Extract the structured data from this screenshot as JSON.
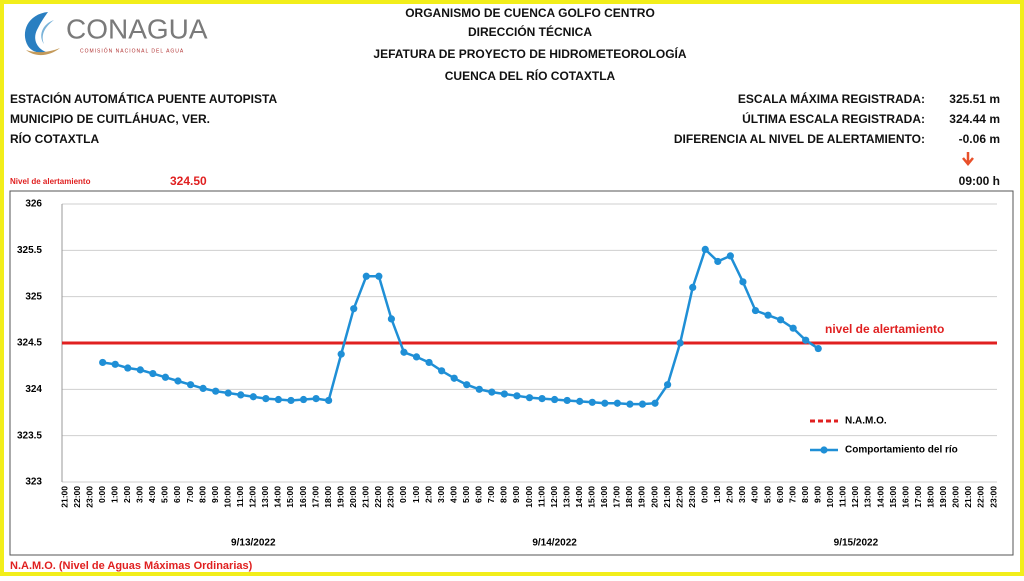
{
  "header": {
    "logo_name": "CONAGUA",
    "logo_subtitle": "COMISIÓN NACIONAL DEL AGUA",
    "titles": [
      "ORGANISMO DE CUENCA GOLFO CENTRO",
      "DIRECCIÓN TÉCNICA",
      "JEFATURA DE PROYECTO DE HIDROMETEOROLOGÍA",
      "CUENCA DEL RÍO COTAXTLA"
    ],
    "station": [
      "ESTACIÓN AUTOMÁTICA PUENTE AUTOPISTA",
      "MUNICIPIO DE CUITLÁHUAC, VER.",
      "RÍO COTAXTLA"
    ],
    "stats": [
      {
        "label": "ESCALA MÁXIMA REGISTRADA:",
        "value": "325.51 m"
      },
      {
        "label": "ÚLTIMA ESCALA REGISTRADA:",
        "value": "324.44 m"
      },
      {
        "label": "DIFERENCIA AL NIVEL DE ALERTAMIENTO:",
        "value": "-0.06 m"
      }
    ],
    "alert_label": "Nivel de alertamiento",
    "alert_value": "324.50",
    "time": "09:00 h"
  },
  "chart_data": {
    "type": "line",
    "categories": [
      "21:00",
      "22:00",
      "23:00",
      "0:00",
      "1:00",
      "2:00",
      "3:00",
      "4:00",
      "5:00",
      "6:00",
      "7:00",
      "8:00",
      "9:00",
      "10:00",
      "11:00",
      "12:00",
      "13:00",
      "14:00",
      "15:00",
      "16:00",
      "17:00",
      "18:00",
      "19:00",
      "20:00",
      "21:00",
      "22:00",
      "23:00",
      "0:00",
      "1:00",
      "2:00",
      "3:00",
      "4:00",
      "5:00",
      "6:00",
      "7:00",
      "8:00",
      "9:00",
      "10:00",
      "11:00",
      "12:00",
      "13:00",
      "14:00",
      "15:00",
      "16:00",
      "17:00",
      "18:00",
      "19:00",
      "20:00",
      "21:00",
      "22:00",
      "23:00",
      "0:00",
      "1:00",
      "2:00",
      "3:00",
      "4:00",
      "5:00",
      "6:00",
      "7:00",
      "8:00",
      "9:00",
      "10:00",
      "11:00",
      "12:00",
      "13:00",
      "14:00",
      "15:00",
      "16:00",
      "17:00",
      "18:00",
      "19:00",
      "20:00",
      "21:00",
      "22:00",
      "23:00"
    ],
    "date_labels": [
      "9/13/2022",
      "9/14/2022",
      "9/15/2022"
    ],
    "series": [
      {
        "name": "Comportamiento del río",
        "color": "#1f8fd6",
        "values": [
          null,
          null,
          null,
          324.29,
          324.27,
          324.23,
          324.21,
          324.17,
          324.13,
          324.09,
          324.05,
          324.01,
          323.98,
          323.96,
          323.94,
          323.92,
          323.9,
          323.89,
          323.88,
          323.89,
          323.9,
          323.88,
          324.38,
          324.87,
          325.22,
          325.22,
          324.76,
          324.4,
          324.35,
          324.29,
          324.2,
          324.12,
          324.05,
          324.0,
          323.97,
          323.95,
          323.93,
          323.91,
          323.9,
          323.89,
          323.88,
          323.87,
          323.86,
          323.85,
          323.85,
          323.84,
          323.84,
          323.85,
          324.05,
          324.5,
          325.1,
          325.51,
          325.38,
          325.44,
          325.16,
          324.85,
          324.8,
          324.75,
          324.66,
          324.53,
          324.44,
          null,
          null,
          null,
          null,
          null,
          null,
          null,
          null,
          null,
          null,
          null,
          null,
          null,
          null
        ]
      }
    ],
    "reference_lines": [
      {
        "name": "N.A.M.O.",
        "value": 324.5,
        "color": "#e02020",
        "annotation": "nivel de alertamiento"
      }
    ],
    "ylim": [
      323,
      326
    ],
    "yticks": [
      323,
      323.5,
      324,
      324.5,
      325,
      325.5,
      326
    ],
    "grid": true
  },
  "footer": "N.A.M.O. (Nivel de Aguas Máximas Ordinarias)"
}
